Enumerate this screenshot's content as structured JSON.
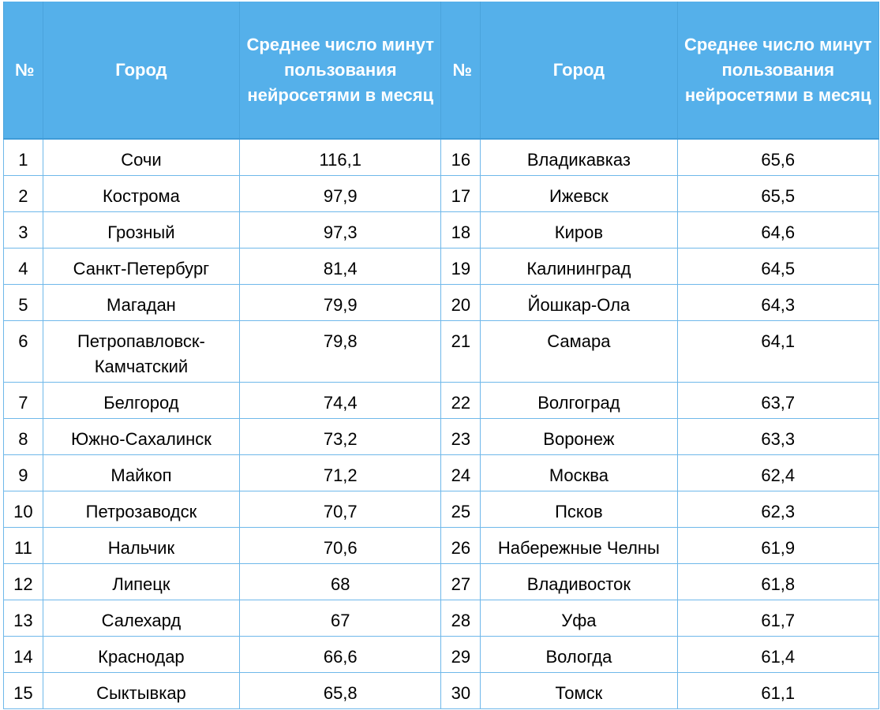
{
  "headers": {
    "num": "№",
    "city": "Город",
    "minutes": "Среднее число минут пользования нейросетями в месяц"
  },
  "left": [
    {
      "n": "1",
      "city": "Сочи",
      "v": "116,1"
    },
    {
      "n": "2",
      "city": "Кострома",
      "v": "97,9"
    },
    {
      "n": "3",
      "city": "Грозный",
      "v": "97,3"
    },
    {
      "n": "4",
      "city": "Санкт-Петербург",
      "v": "81,4"
    },
    {
      "n": "5",
      "city": "Магадан",
      "v": "79,9"
    },
    {
      "n": "6",
      "city": "Петропавловск-Камчатский",
      "v": "79,8"
    },
    {
      "n": "7",
      "city": "Белгород",
      "v": "74,4"
    },
    {
      "n": "8",
      "city": "Южно-Сахалинск",
      "v": "73,2"
    },
    {
      "n": "9",
      "city": "Майкоп",
      "v": "71,2"
    },
    {
      "n": "10",
      "city": "Петрозаводск",
      "v": "70,7"
    },
    {
      "n": "11",
      "city": "Нальчик",
      "v": "70,6"
    },
    {
      "n": "12",
      "city": "Липецк",
      "v": "68"
    },
    {
      "n": "13",
      "city": "Салехард",
      "v": "67"
    },
    {
      "n": "14",
      "city": "Краснодар",
      "v": "66,6"
    },
    {
      "n": "15",
      "city": "Сыктывкар",
      "v": "65,8"
    }
  ],
  "right": [
    {
      "n": "16",
      "city": "Владикавказ",
      "v": "65,6"
    },
    {
      "n": "17",
      "city": "Ижевск",
      "v": "65,5"
    },
    {
      "n": "18",
      "city": "Киров",
      "v": "64,6"
    },
    {
      "n": "19",
      "city": "Калининград",
      "v": "64,5"
    },
    {
      "n": "20",
      "city": "Йошкар-Ола",
      "v": "64,3"
    },
    {
      "n": "21",
      "city": "Самара",
      "v": "64,1"
    },
    {
      "n": "22",
      "city": "Волгоград",
      "v": "63,7"
    },
    {
      "n": "23",
      "city": "Воронеж",
      "v": "63,3"
    },
    {
      "n": "24",
      "city": "Москва",
      "v": "62,4"
    },
    {
      "n": "25",
      "city": "Псков",
      "v": "62,3"
    },
    {
      "n": "26",
      "city": "Набережные Челны",
      "v": "61,9"
    },
    {
      "n": "27",
      "city": "Владивосток",
      "v": "61,8"
    },
    {
      "n": "28",
      "city": "Уфа",
      "v": "61,7"
    },
    {
      "n": "29",
      "city": "Вологда",
      "v": "61,4"
    },
    {
      "n": "30",
      "city": "Томск",
      "v": "61,1"
    }
  ],
  "colors": {
    "header_bg": "#55b0ea",
    "header_text": "#ffffff",
    "grid": "#6fb8ea"
  }
}
